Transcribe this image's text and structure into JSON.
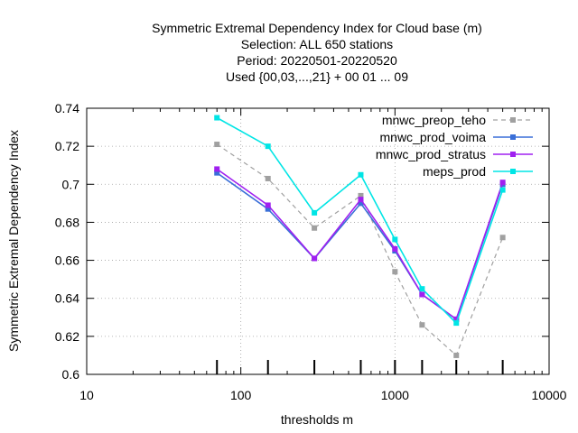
{
  "chart_data": {
    "type": "line",
    "title_lines": [
      "Symmetric Extremal Dependency Index  for Cloud base (m)",
      "Selection: ALL    650 stations",
      "Period: 20220501-20220520",
      "Used {00,03,...,21} + 00 01 ... 09"
    ],
    "xlabel": "thresholds m",
    "ylabel": "Symmetric Extremal Dependency Index",
    "xscale": "log",
    "xlim": [
      10,
      10000
    ],
    "ylim": [
      0.6,
      0.74
    ],
    "xticks": [
      10,
      100,
      1000,
      10000
    ],
    "xtick_labels": [
      "10",
      "100",
      "1000",
      "10000"
    ],
    "yticks": [
      0.6,
      0.62,
      0.64,
      0.66,
      0.68,
      0.7,
      0.72,
      0.74
    ],
    "ytick_labels": [
      "0.6",
      "0.62",
      "0.64",
      "0.66",
      "0.68",
      "0.7",
      "0.72",
      "0.74"
    ],
    "grid": true,
    "legend_position": "top-right",
    "x": [
      70,
      150,
      300,
      600,
      1000,
      1500,
      2500,
      5000
    ],
    "series": [
      {
        "name": "mnwc_preop_teho",
        "color": "#a0a0a0",
        "dashed": true,
        "values": [
          0.721,
          0.703,
          0.677,
          0.694,
          0.654,
          0.626,
          0.61,
          0.672
        ]
      },
      {
        "name": "mnwc_prod_voima",
        "color": "#3a6fd8",
        "dashed": false,
        "values": [
          0.706,
          0.687,
          0.661,
          0.69,
          0.665,
          0.642,
          0.629,
          0.7
        ]
      },
      {
        "name": "mnwc_prod_stratus",
        "color": "#a020f0",
        "dashed": false,
        "values": [
          0.708,
          0.689,
          0.661,
          0.692,
          0.666,
          0.642,
          0.629,
          0.701
        ]
      },
      {
        "name": "meps_prod",
        "color": "#00e5e5",
        "dashed": false,
        "values": [
          0.735,
          0.72,
          0.685,
          0.705,
          0.671,
          0.645,
          0.627,
          0.697
        ]
      }
    ]
  }
}
